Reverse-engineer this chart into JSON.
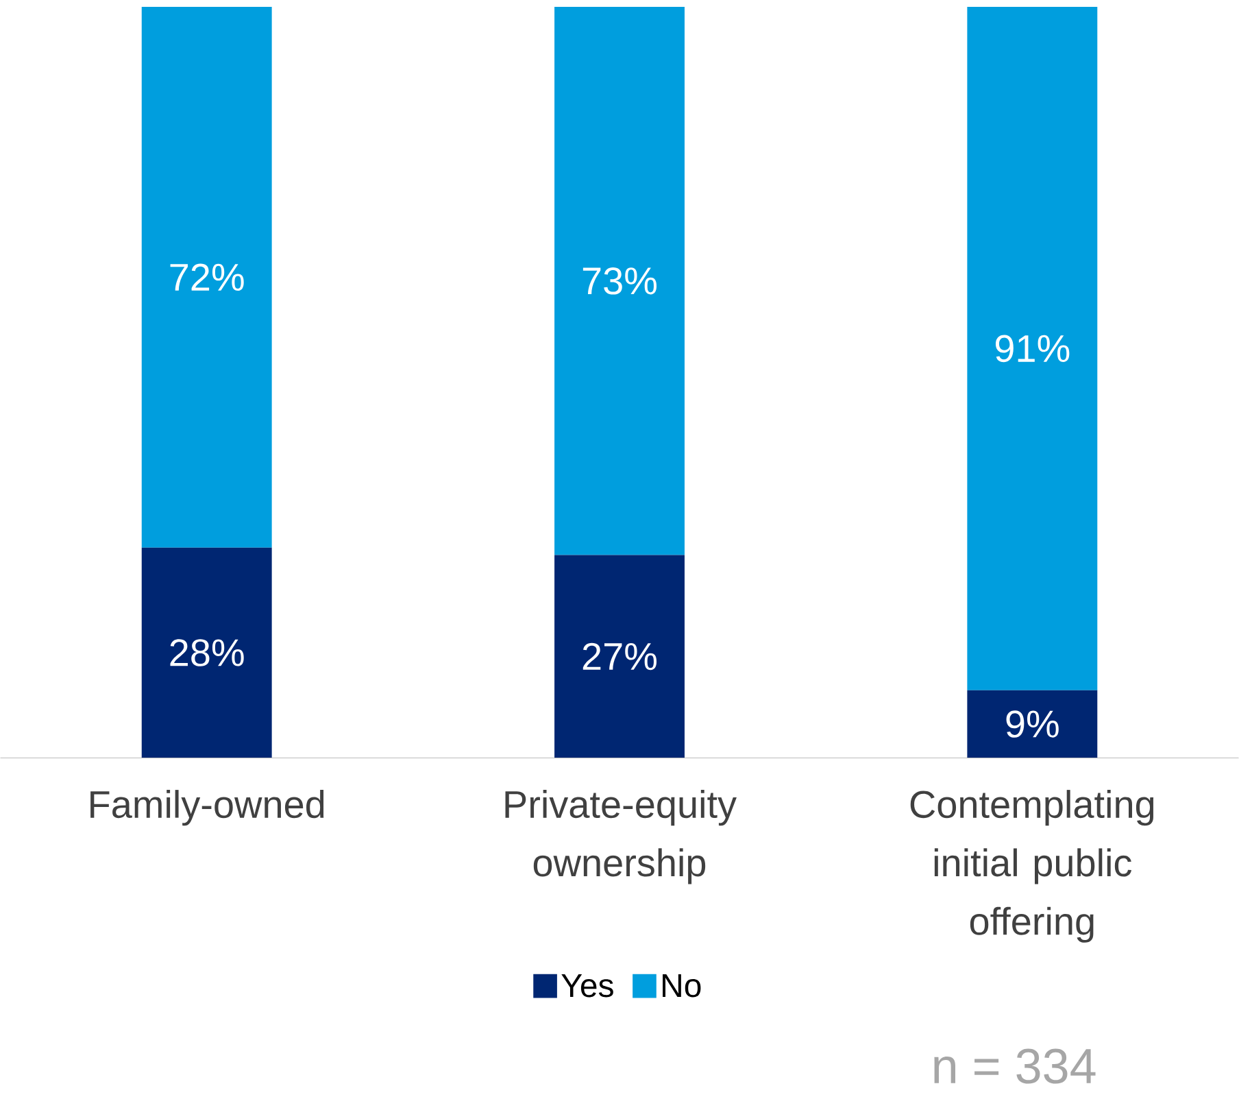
{
  "chart_data": {
    "type": "bar",
    "stacked": true,
    "categories": [
      "Family-owned",
      "Private-equity ownership",
      "Contemplating initial public offering"
    ],
    "series": [
      {
        "name": "Yes",
        "color": "#002672",
        "values": [
          28,
          27,
          9
        ],
        "value_labels": [
          "28%",
          "27%",
          "9%"
        ]
      },
      {
        "name": "No",
        "color": "#009ede",
        "values": [
          72,
          73,
          91
        ],
        "value_labels": [
          "72%",
          "73%",
          "91%"
        ]
      }
    ],
    "legend": "bottom",
    "annotations": [
      "n = 334"
    ]
  }
}
